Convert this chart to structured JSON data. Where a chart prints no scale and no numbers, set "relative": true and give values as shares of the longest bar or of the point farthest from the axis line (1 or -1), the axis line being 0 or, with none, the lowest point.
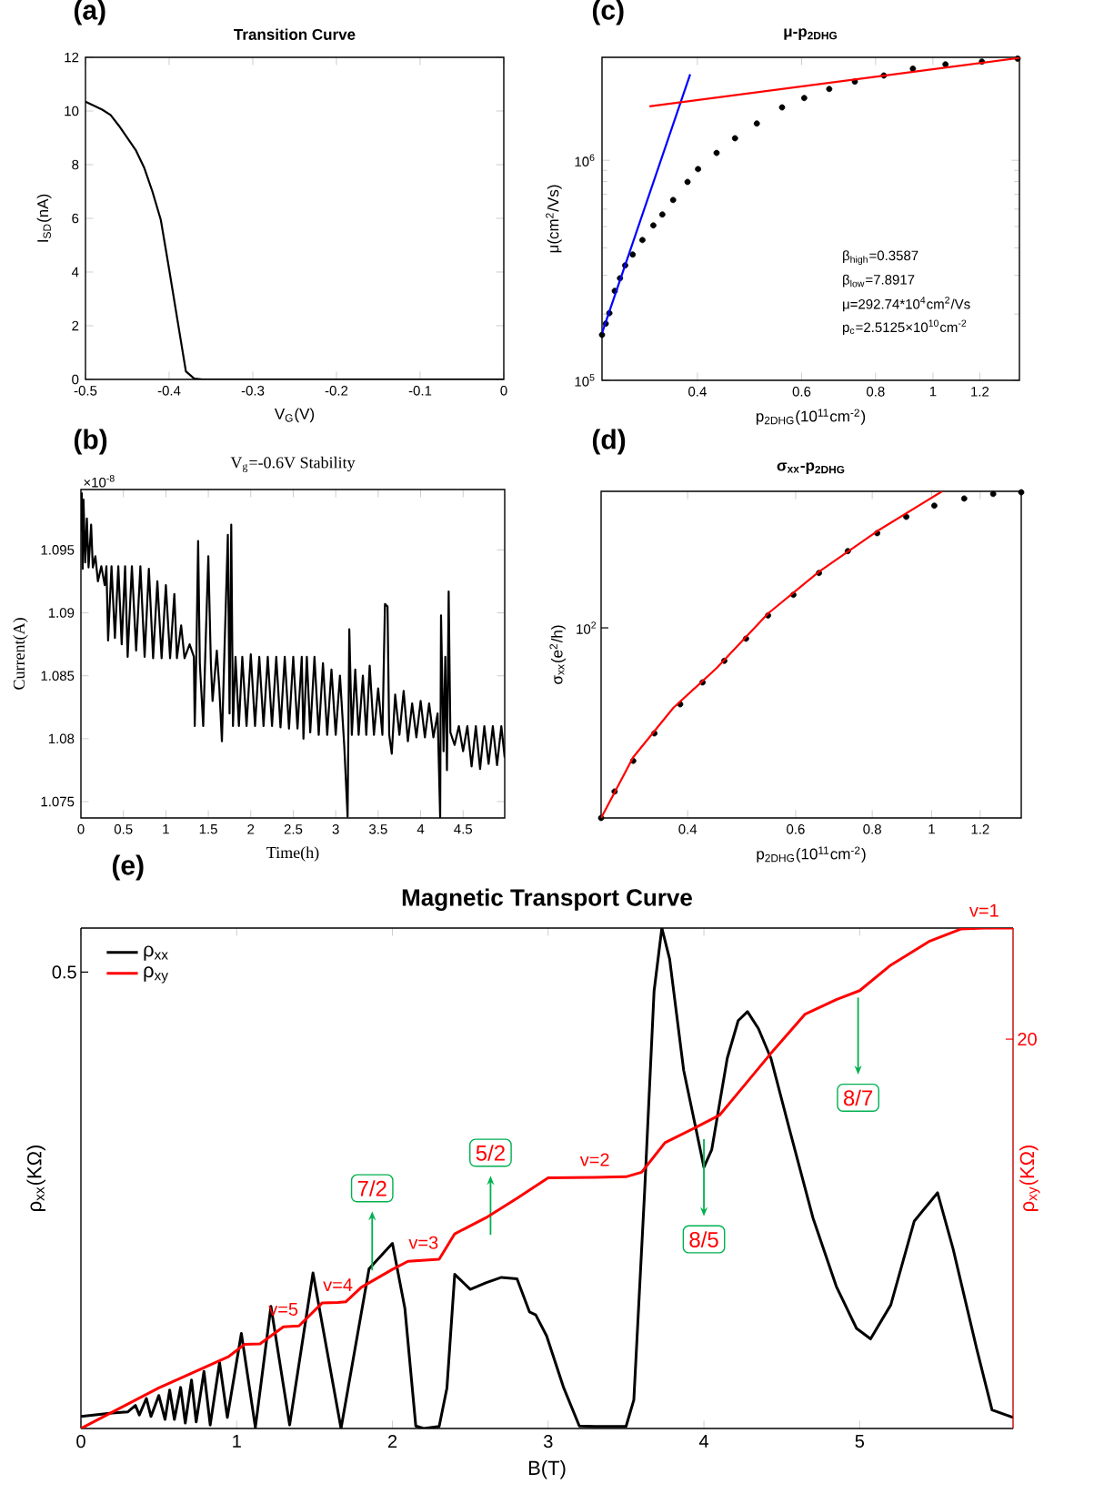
{
  "chart_data": [
    {
      "type": "line",
      "title": "Transition Curve",
      "xlabel": "V$_{G}$(V)",
      "ylabel": "I$_{SD}$(nA)",
      "annotations": [
        "(a)"
      ],
      "x": [
        -0.5,
        -0.48,
        -0.47,
        -0.46,
        -0.45,
        -0.44,
        -0.43,
        -0.42,
        -0.41,
        -0.4,
        -0.39,
        -0.38,
        -0.37,
        -0.36,
        0
      ],
      "series": [
        {
          "color": "#000000",
          "values": [
            10.35,
            10.05,
            9.85,
            9.45,
            9.0,
            8.55,
            7.9,
            7.0,
            5.95,
            4.1,
            2.2,
            0.3,
            0.03,
            0,
            0
          ]
        }
      ],
      "xlim": [
        -0.5,
        0
      ],
      "xticks": [
        -0.5,
        -0.4,
        -0.3,
        -0.2,
        -0.1,
        0
      ],
      "ylim": [
        0,
        12
      ],
      "yticks": [
        0,
        2,
        4,
        6,
        8,
        10,
        12
      ]
    },
    {
      "type": "line",
      "title": "V$_{g}$=-0.6V Stability",
      "xlabel": "Time(h)",
      "ylabel": "Current(A)",
      "annotations": [
        "(b)",
        "×10$^{-8}$"
      ],
      "x": [
        0,
        0.01,
        0.02,
        0.03,
        0.05,
        0.07,
        0.09,
        0.12,
        0.14,
        0.17,
        0.2,
        0.24,
        0.28,
        0.3,
        0.32,
        0.36,
        0.4,
        0.44,
        0.48,
        0.52,
        0.55,
        0.6,
        0.65,
        0.7,
        0.75,
        0.8,
        0.85,
        0.9,
        0.95,
        1.0,
        1.05,
        1.1,
        1.13,
        1.18,
        1.22,
        1.28,
        1.33,
        1.34,
        1.36,
        1.38,
        1.4,
        1.44,
        1.47,
        1.5,
        1.53,
        1.55,
        1.6,
        1.63,
        1.66,
        1.69,
        1.73,
        1.75,
        1.77,
        1.79,
        1.82,
        1.86,
        1.9,
        1.95,
        2.0,
        2.05,
        2.1,
        2.15,
        2.2,
        2.25,
        2.3,
        2.35,
        2.4,
        2.45,
        2.5,
        2.55,
        2.6,
        2.62,
        2.66,
        2.7,
        2.75,
        2.8,
        2.85,
        2.9,
        2.95,
        3.0,
        3.05,
        3.1,
        3.14,
        3.16,
        3.19,
        3.23,
        3.27,
        3.32,
        3.36,
        3.4,
        3.45,
        3.5,
        3.55,
        3.58,
        3.61,
        3.63,
        3.66,
        3.7,
        3.75,
        3.8,
        3.85,
        3.9,
        3.95,
        4.0,
        4.05,
        4.1,
        4.15,
        4.2,
        4.23,
        4.24,
        4.27,
        4.29,
        4.31,
        4.33,
        4.35,
        4.4,
        4.45,
        4.5,
        4.55,
        4.6,
        4.65,
        4.7,
        4.75,
        4.8,
        4.85,
        4.9,
        4.95,
        4.99
      ],
      "series": [
        {
          "color": "#000000",
          "values": [
            1.0965,
            1.0995,
            1.0935,
            1.099,
            1.094,
            1.0975,
            1.0936,
            1.097,
            1.0936,
            1.0945,
            1.0925,
            1.0937,
            1.0922,
            1.0937,
            1.0878,
            1.0937,
            1.088,
            1.0937,
            1.0875,
            1.0937,
            1.0865,
            1.0937,
            1.087,
            1.0937,
            1.0865,
            1.0935,
            1.0864,
            1.0925,
            1.0864,
            1.0922,
            1.0864,
            1.0915,
            1.0864,
            1.089,
            1.0864,
            1.0875,
            1.0865,
            1.081,
            1.087,
            1.0957,
            1.086,
            1.081,
            1.088,
            1.0945,
            1.086,
            1.083,
            1.087,
            1.084,
            1.0798,
            1.087,
            1.0962,
            1.082,
            1.097,
            1.081,
            1.0865,
            1.081,
            1.0865,
            1.081,
            1.0867,
            1.081,
            1.0865,
            1.081,
            1.0865,
            1.081,
            1.0865,
            1.0809,
            1.0865,
            1.0808,
            1.0865,
            1.0808,
            1.0865,
            1.08,
            1.0865,
            1.0805,
            1.0865,
            1.0803,
            1.086,
            1.0803,
            1.0855,
            1.0803,
            1.085,
            1.0795,
            1.0738,
            1.0887,
            1.0803,
            1.0855,
            1.0803,
            1.085,
            1.0803,
            1.0858,
            1.0803,
            1.084,
            1.0803,
            1.0907,
            1.0905,
            1.0803,
            1.0788,
            1.0835,
            1.0803,
            1.0838,
            1.0798,
            1.0828,
            1.0801,
            1.083,
            1.0801,
            1.0828,
            1.0801,
            1.082,
            1.0737,
            1.0898,
            1.079,
            1.0865,
            1.0775,
            1.0917,
            1.0805,
            1.0795,
            1.081,
            1.079,
            1.081,
            1.0778,
            1.081,
            1.0776,
            1.081,
            1.078,
            1.081,
            1.0779,
            1.081,
            1.0785
          ]
        }
      ],
      "xlim": [
        0,
        4.99
      ],
      "xticks": [
        0,
        0.5,
        1,
        1.5,
        2,
        2.5,
        3,
        3.5,
        4,
        4.5
      ],
      "ylim": [
        1.0737,
        1.0998
      ],
      "yticks": [
        1.075,
        1.08,
        1.085,
        1.09,
        1.095
      ]
    },
    {
      "type": "scatter",
      "title": "μ-p$_{2DHG}$",
      "xlabel": "p$_{2DHG}$(10$^{11}$cm$^{-2}$)",
      "ylabel": "μ(cm$^{2}$/Vs)",
      "marker": "circle",
      "log": "xy",
      "annotations": [
        "(c)",
        "β$_{high}$=0.3587",
        "β$_{low}$=7.8917",
        "μ=292.74*10$^{4}$cm$^{2}$/Vs",
        "p$_{c}$=2.5125×10$^{10}$cm$^{-2}$"
      ],
      "series": [
        {
          "color": "#000000",
          "x": [
            0.276,
            0.28,
            0.284,
            0.29,
            0.296,
            0.302,
            0.311,
            0.323,
            0.337,
            0.349,
            0.364,
            0.385,
            0.401,
            0.431,
            0.463,
            0.504,
            0.556,
            0.606,
            0.668,
            0.738,
            0.826,
            0.925,
            1.05,
            1.21,
            1.39
          ],
          "values": [
            161000,
            181000,
            202000,
            255000,
            291000,
            333000,
            373000,
            434000,
            506000,
            567000,
            660000,
            798000,
            912000,
            1080000,
            1260000,
            1470000,
            1740000,
            1920000,
            2110000,
            2280000,
            2430000,
            2610000,
            2730000,
            2810000,
            2900000
          ]
        },
        {
          "type": "line",
          "marker": "none",
          "color": "#0000ff",
          "x": [
            0.276,
            0.389
          ],
          "values": [
            164000,
            2460000
          ]
        },
        {
          "type": "line",
          "marker": "none",
          "color": "#ff0000",
          "x": [
            0.332,
            1.4
          ],
          "values": [
            1760000,
            2920000
          ]
        }
      ],
      "xlim": [
        0.276,
        1.4
      ],
      "xticks": [
        0.4,
        0.6,
        0.8,
        1,
        1.2
      ],
      "ylim": [
        100000,
        2940000
      ],
      "yticks": [
        {
          "value": 100000,
          "label": "10$^{5}$"
        },
        {
          "value": 1000000,
          "label": "10$^{6}$"
        }
      ]
    },
    {
      "type": "scatter",
      "title": "σ$_{xx}$-p$_{2DHG}$",
      "xlabel": "p$_{2DHG}$(10$^{11}$cm$^{-2}$)",
      "ylabel": "σ$_{xx}$(e$^{2}$/h)",
      "marker": "circle",
      "log": "x",
      "relative": true,
      "annotations": [
        "(d)",
        "10$^{2}$"
      ],
      "series": [
        {
          "color": "#000000",
          "x": [
            0.289,
            0.304,
            0.326,
            0.353,
            0.389,
            0.423,
            0.459,
            0.498,
            0.541,
            0.595,
            0.655,
            0.73,
            0.815,
            0.909,
            1.01,
            1.13,
            1.26,
            1.4
          ],
          "values": [
            0,
            0.081,
            0.175,
            0.259,
            0.348,
            0.415,
            0.481,
            0.549,
            0.62,
            0.683,
            0.75,
            0.817,
            0.872,
            0.922,
            0.956,
            0.978,
            0.992,
            0.997
          ]
        },
        {
          "type": "line",
          "marker": "none",
          "color": "#ff0000",
          "x": [
            0.289,
            0.326,
            0.379,
            0.446,
            0.541,
            0.655,
            0.815,
            1.04
          ],
          "values": [
            0,
            0.186,
            0.337,
            0.459,
            0.626,
            0.754,
            0.878,
            1
          ]
        }
      ],
      "xlim": [
        0.289,
        1.4
      ],
      "xticks": [
        0.4,
        0.6,
        0.8,
        1,
        1.2
      ]
    },
    {
      "type": "line",
      "title": "Magnetic Transport Curve",
      "xlabel": "B(T)",
      "ylabel": "ρ$_{xx}$(KΩ)",
      "y2label": "ρ$_{xy}$(KΩ)",
      "legend": "top left",
      "relative": true,
      "annotations": [
        "(e)",
        "0.5",
        "20",
        "7/2",
        "5/2",
        "8/5",
        "8/7",
        {
          "text": "v=5",
          "x": 1.3,
          "y": 0.203
        },
        {
          "text": "v=4",
          "x": 1.65,
          "y": 0.252
        },
        {
          "text": "v=3",
          "x": 2.2,
          "y": 0.336
        },
        {
          "text": "v=2",
          "x": 3.3,
          "y": 0.502
        },
        {
          "text": "v=1",
          "x": 5.8,
          "y": 1
        }
      ],
      "series": [
        {
          "name": "ρ$_{xx}$",
          "color": "#000000",
          "x": [
            0,
            0.2,
            0.3,
            0.35,
            0.375,
            0.42,
            0.45,
            0.5,
            0.54,
            0.57,
            0.6,
            0.64,
            0.67,
            0.71,
            0.74,
            0.79,
            0.83,
            0.89,
            0.94,
            1.03,
            1.12,
            1.22,
            1.34,
            1.49,
            1.67,
            1.85,
            2.0,
            2.08,
            2.15,
            2.2,
            2.3,
            2.35,
            2.4,
            2.5,
            2.6,
            2.7,
            2.8,
            2.88,
            2.92,
            2.99,
            3.1,
            3.2,
            3.3,
            3.5,
            3.55,
            3.62,
            3.68,
            3.73,
            3.78,
            3.87,
            3.95,
            4.0,
            4.05,
            4.15,
            4.22,
            4.28,
            4.35,
            4.43,
            4.55,
            4.7,
            4.85,
            4.98,
            5.07,
            5.2,
            5.35,
            5.5,
            5.6,
            5.75,
            5.85,
            5.985
          ],
          "values": [
            0.024,
            0.031,
            0.033,
            0.046,
            0.027,
            0.06,
            0.024,
            0.066,
            0.018,
            0.077,
            0.018,
            0.082,
            0.011,
            0.097,
            0.013,
            0.114,
            0.007,
            0.132,
            0.022,
            0.19,
            0.002,
            0.244,
            0.007,
            0.311,
            0,
            0.319,
            0.37,
            0.24,
            0.005,
            0,
            0.004,
            0.081,
            0.308,
            0.278,
            0.291,
            0.302,
            0.299,
            0.233,
            0.227,
            0.185,
            0.081,
            0.005,
            0.004,
            0.004,
            0.057,
            0.478,
            0.874,
            1,
            0.938,
            0.716,
            0.597,
            0.522,
            0.557,
            0.74,
            0.815,
            0.833,
            0.799,
            0.74,
            0.597,
            0.421,
            0.284,
            0.2,
            0.179,
            0.247,
            0.414,
            0.471,
            0.359,
            0.161,
            0.037,
            0.022
          ]
        },
        {
          "name": "ρ$_{xy}$",
          "color": "#ff0000",
          "axis": "y2",
          "x": [
            0,
            0.5,
            0.95,
            1.05,
            1.15,
            1.3,
            1.4,
            1.55,
            1.65,
            1.7,
            1.8,
            2.0,
            2.1,
            2.2,
            2.3,
            2.4,
            2.6,
            2.8,
            3.0,
            3.3,
            3.5,
            3.6,
            3.75,
            3.95,
            4.1,
            4.25,
            4.45,
            4.65,
            4.85,
            5.0,
            5.2,
            5.45,
            5.65,
            5.8,
            5.985
          ],
          "values": [
            0,
            0.081,
            0.144,
            0.168,
            0.169,
            0.203,
            0.205,
            0.251,
            0.252,
            0.253,
            0.282,
            0.318,
            0.334,
            0.336,
            0.338,
            0.389,
            0.421,
            0.46,
            0.501,
            0.502,
            0.503,
            0.512,
            0.571,
            0.602,
            0.626,
            0.682,
            0.757,
            0.828,
            0.857,
            0.875,
            0.926,
            0.974,
            0.998,
            1,
            1
          ]
        }
      ],
      "xlim": [
        0,
        5.985
      ],
      "xticks": [
        0,
        1,
        2,
        3,
        4,
        5
      ]
    }
  ]
}
